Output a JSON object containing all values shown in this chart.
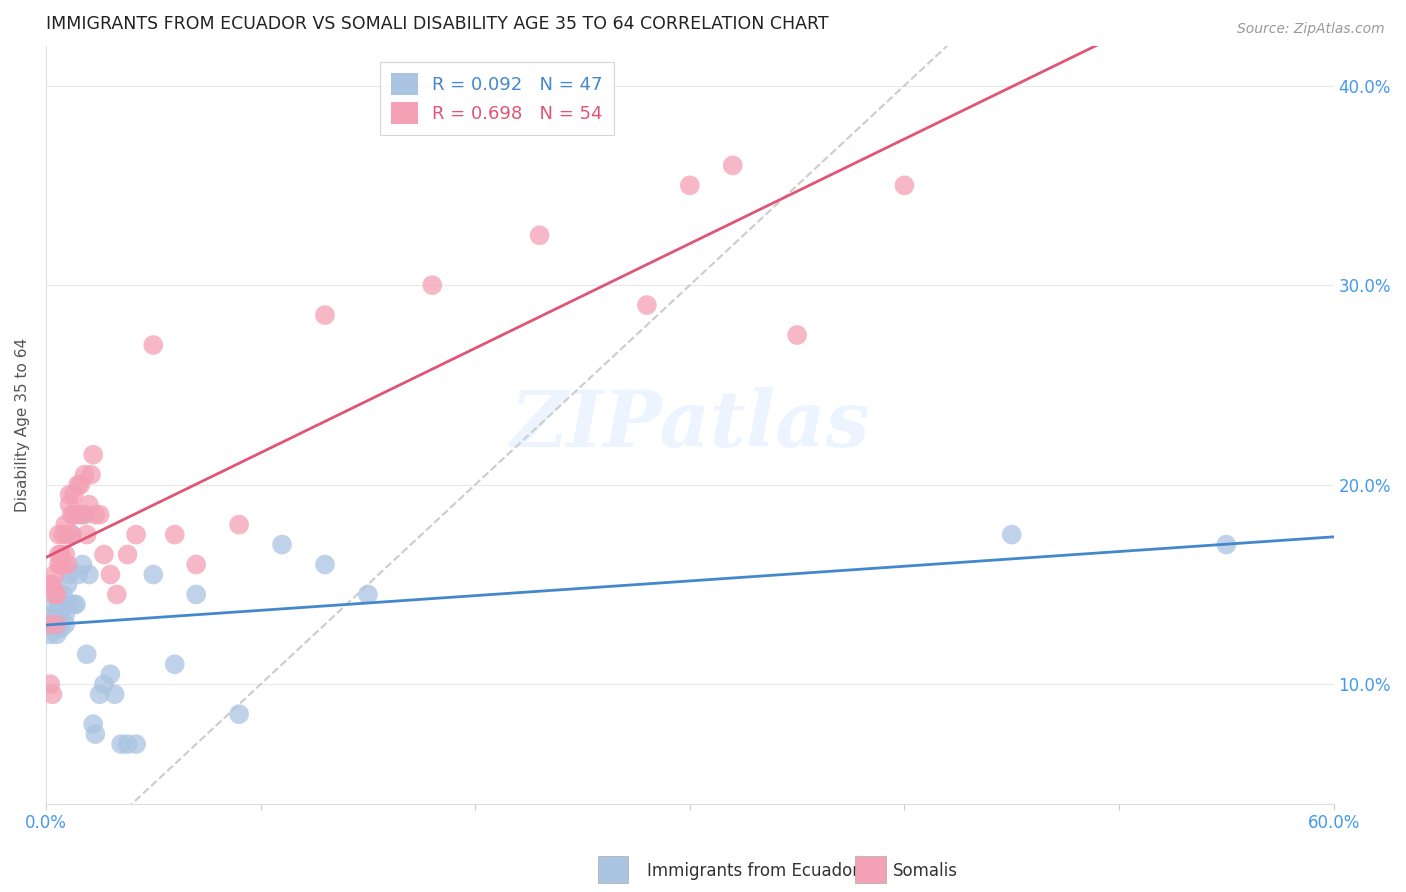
{
  "title": "IMMIGRANTS FROM ECUADOR VS SOMALI DISABILITY AGE 35 TO 64 CORRELATION CHART",
  "source": "Source: ZipAtlas.com",
  "ylabel": "Disability Age 35 to 64",
  "xlim": [
    0.0,
    0.6
  ],
  "ylim": [
    0.04,
    0.42
  ],
  "yticks": [
    0.1,
    0.2,
    0.3,
    0.4
  ],
  "yticklabels": [
    "10.0%",
    "20.0%",
    "30.0%",
    "40.0%"
  ],
  "legend1_label": "R = 0.092   N = 47",
  "legend2_label": "R = 0.698   N = 54",
  "legend_color1": "#aac4e2",
  "legend_color2": "#f4a0b5",
  "line_color1": "#4488cc",
  "line_color2": "#e05575",
  "diag_color": "#cccccc",
  "scatter_color1": "#aac4e2",
  "scatter_color2": "#f4a0b5",
  "watermark": "ZIPatlas",
  "bottom_legend1": "Immigrants from Ecuador",
  "bottom_legend2": "Somalis",
  "ecuador_x": [
    0.001,
    0.002,
    0.003,
    0.004,
    0.004,
    0.005,
    0.005,
    0.006,
    0.006,
    0.007,
    0.007,
    0.008,
    0.008,
    0.009,
    0.009,
    0.01,
    0.01,
    0.011,
    0.011,
    0.012,
    0.013,
    0.013,
    0.014,
    0.015,
    0.016,
    0.017,
    0.018,
    0.019,
    0.02,
    0.022,
    0.023,
    0.025,
    0.027,
    0.03,
    0.032,
    0.035,
    0.038,
    0.042,
    0.05,
    0.06,
    0.07,
    0.09,
    0.11,
    0.13,
    0.15,
    0.45,
    0.55
  ],
  "ecuador_y": [
    0.13,
    0.125,
    0.135,
    0.14,
    0.13,
    0.135,
    0.125,
    0.14,
    0.13,
    0.135,
    0.128,
    0.14,
    0.145,
    0.13,
    0.135,
    0.14,
    0.15,
    0.14,
    0.155,
    0.175,
    0.14,
    0.185,
    0.14,
    0.155,
    0.185,
    0.16,
    0.185,
    0.115,
    0.155,
    0.08,
    0.075,
    0.095,
    0.1,
    0.105,
    0.095,
    0.07,
    0.07,
    0.07,
    0.155,
    0.11,
    0.145,
    0.085,
    0.17,
    0.16,
    0.145,
    0.175,
    0.17
  ],
  "somali_x": [
    0.001,
    0.002,
    0.002,
    0.003,
    0.003,
    0.004,
    0.004,
    0.005,
    0.005,
    0.006,
    0.006,
    0.006,
    0.007,
    0.007,
    0.008,
    0.008,
    0.009,
    0.009,
    0.01,
    0.01,
    0.011,
    0.011,
    0.012,
    0.012,
    0.013,
    0.013,
    0.014,
    0.015,
    0.016,
    0.017,
    0.018,
    0.019,
    0.02,
    0.021,
    0.022,
    0.023,
    0.025,
    0.027,
    0.03,
    0.033,
    0.038,
    0.042,
    0.05,
    0.06,
    0.07,
    0.09,
    0.13,
    0.18,
    0.23,
    0.28,
    0.3,
    0.32,
    0.35,
    0.4
  ],
  "somali_y": [
    0.13,
    0.15,
    0.1,
    0.15,
    0.095,
    0.155,
    0.145,
    0.13,
    0.145,
    0.16,
    0.165,
    0.175,
    0.16,
    0.165,
    0.16,
    0.175,
    0.165,
    0.18,
    0.16,
    0.175,
    0.19,
    0.195,
    0.175,
    0.185,
    0.185,
    0.195,
    0.185,
    0.2,
    0.2,
    0.185,
    0.205,
    0.175,
    0.19,
    0.205,
    0.215,
    0.185,
    0.185,
    0.165,
    0.155,
    0.145,
    0.165,
    0.175,
    0.27,
    0.175,
    0.16,
    0.18,
    0.285,
    0.3,
    0.325,
    0.29,
    0.35,
    0.36,
    0.275,
    0.35
  ]
}
